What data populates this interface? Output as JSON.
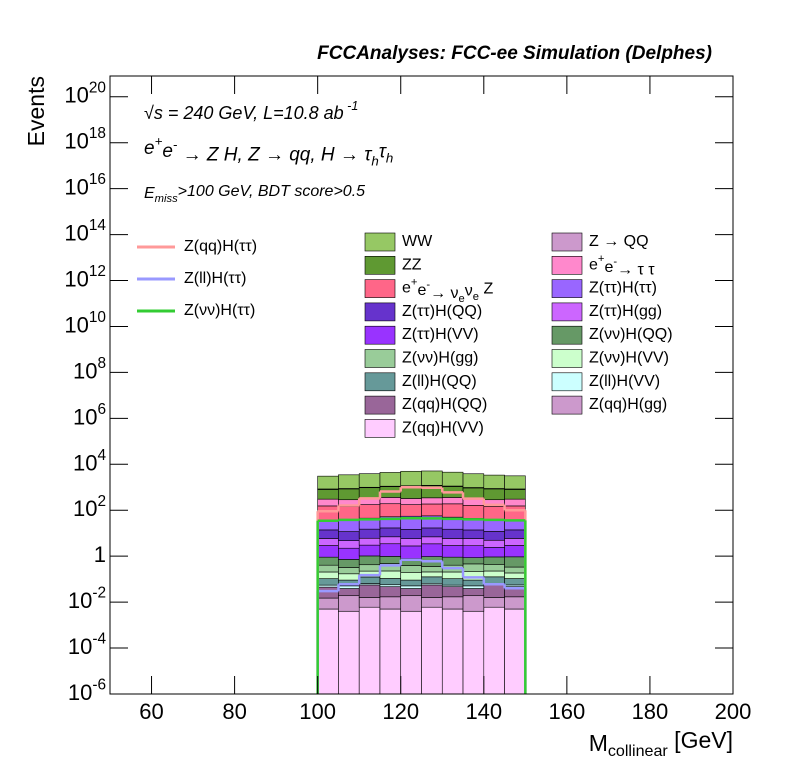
{
  "chart_data": {
    "type": "stacked_histogram",
    "title": "FCCAnalyses: FCC-ee Simulation (Delphes)",
    "annotations": [
      "√s = 240 GeV, L=10.8 ab^{ -1}",
      "e^{+}e^{-} → Z H, Z  → qq, H  → τ_{h}τ_{h}",
      "E_{miss}>100 GeV, BDT score>0.5"
    ],
    "x_label": "M_{collinear} [GeV]",
    "y_label": "Events",
    "log_y": true,
    "xlim": [
      50,
      200
    ],
    "xticks": [
      60,
      80,
      100,
      120,
      140,
      160,
      180,
      200
    ],
    "ylim": [
      1e-06,
      8e+20
    ],
    "yticks": [
      {
        "value": 1e-06,
        "label": "10^{-6}"
      },
      {
        "value": 0.0001,
        "label": "10^{-4}"
      },
      {
        "value": 0.01,
        "label": "10^{-2}"
      },
      1,
      {
        "value": 100,
        "label": "10^{2}"
      },
      {
        "value": 10000.0,
        "label": "10^{4}"
      },
      {
        "value": 1000000.0,
        "label": "10^{6}"
      },
      {
        "value": 100000000.0,
        "label": "10^{8}"
      },
      {
        "value": 10000000000.0,
        "label": "10^{10}"
      },
      {
        "value": 1000000000000.0,
        "label": "10^{12}"
      },
      {
        "value": 100000000000000.0,
        "label": "10^{14}"
      },
      {
        "value": 1e+16,
        "label": "10^{16}"
      },
      {
        "value": 1e+18,
        "label": "10^{18}"
      },
      {
        "value": 1e+20,
        "label": "10^{20}"
      }
    ],
    "bins": [
      100,
      105,
      110,
      115,
      120,
      125,
      130,
      135,
      140,
      145,
      150
    ],
    "series": [
      {
        "name": "WW",
        "color": "#96c864",
        "values": [
          2200,
          2600,
          2900,
          3300,
          3800,
          3900,
          3400,
          2900,
          2500,
          2300
        ]
      },
      {
        "name": "Z → QQ",
        "color": "#cc99cc",
        "values": [
          40,
          35,
          45,
          50,
          40,
          45,
          50,
          40,
          35,
          40
        ]
      },
      {
        "name": "ZZ",
        "color": "#5f9932",
        "values": [
          500,
          560,
          620,
          700,
          800,
          820,
          720,
          620,
          560,
          500
        ]
      },
      {
        "name": "e^{+}e^{-}→ τ τ",
        "color": "#ff88cc",
        "values": [
          150,
          140,
          160,
          170,
          150,
          160,
          170,
          150,
          140,
          150
        ]
      },
      {
        "name": "e^{+}e^{-}→ ν_{e}ν_{e} Z",
        "color": "#ff6688",
        "values": [
          120,
          110,
          130,
          140,
          120,
          130,
          140,
          120,
          110,
          120
        ]
      },
      {
        "name": "Z(ττ)H(ττ)",
        "color": "#9966ff",
        "values": [
          20,
          25,
          30,
          35,
          40,
          40,
          35,
          30,
          25,
          20
        ]
      },
      {
        "name": "Z(ττ)H(QQ)",
        "color": "#6633cc",
        "values": [
          8,
          7,
          9,
          10,
          9,
          10,
          9,
          8,
          7,
          8
        ]
      },
      {
        "name": "Z(ττ)H(gg)",
        "color": "#cc66ff",
        "values": [
          3,
          2.5,
          3,
          3.5,
          3,
          3.5,
          3,
          3,
          2.5,
          3
        ]
      },
      {
        "name": "Z(ττ)H(VV)",
        "color": "#9933ff",
        "values": [
          2,
          1.5,
          2,
          2.5,
          2,
          2.5,
          2,
          2,
          1.5,
          2
        ]
      },
      {
        "name": "Z(νν)H(QQ)",
        "color": "#669966",
        "values": [
          0.5,
          0.4,
          0.6,
          0.5,
          0.4,
          0.6,
          0.5,
          0.4,
          0.5,
          0.6
        ]
      },
      {
        "name": "Z(νν)H(gg)",
        "color": "#99cc99",
        "values": [
          0.2,
          0.15,
          0.2,
          0.25,
          0.2,
          0.15,
          0.2,
          0.25,
          0.2,
          0.15
        ]
      },
      {
        "name": "Z(νν)H(VV)",
        "color": "#ccffcc",
        "values": [
          0.1,
          0.08,
          0.1,
          0.12,
          0.1,
          0.08,
          0.1,
          0.12,
          0.1,
          0.08
        ]
      },
      {
        "name": "Z(ll)H(QQ)",
        "color": "#669999",
        "values": [
          0.05,
          0.04,
          0.06,
          0.05,
          0.04,
          0.06,
          0.05,
          0.04,
          0.06,
          0.05
        ]
      },
      {
        "name": "Z(ll)H(VV)",
        "color": "#ccffff",
        "values": [
          0.01,
          0.012,
          0.008,
          0.01,
          0.012,
          0.01,
          0.008,
          0.012,
          0.01,
          0.009
        ]
      },
      {
        "name": "Z(qq)H(QQ)",
        "color": "#996699",
        "values": [
          0.03,
          0.02,
          0.04,
          0.03,
          0.02,
          0.04,
          0.03,
          0.02,
          0.04,
          0.03
        ]
      },
      {
        "name": "Z(qq)H(gg)",
        "color": "#cc99cc",
        "values": [
          0.01,
          0.015,
          0.01,
          0.012,
          0.015,
          0.01,
          0.012,
          0.015,
          0.01,
          0.012
        ]
      },
      {
        "name": "Z(qq)H(VV)",
        "color": "#ffccff",
        "values": [
          0.005,
          0.004,
          0.006,
          0.005,
          0.004,
          0.006,
          0.005,
          0.004,
          0.006,
          0.005
        ]
      }
    ],
    "lines": [
      {
        "name": "Z(qq)H(ττ)",
        "color": "#ff9999",
        "values": [
          90,
          160,
          330,
          650,
          1000,
          950,
          600,
          320,
          170,
          100
        ]
      },
      {
        "name": "Z(ll)H(ττ)",
        "color": "#9999ff",
        "values": [
          0.03,
          0.06,
          0.15,
          0.4,
          0.7,
          0.6,
          0.3,
          0.12,
          0.06,
          0.04
        ]
      },
      {
        "name": "Z(νν)H(ττ)",
        "color": "#33cc33",
        "values": [
          35,
          38,
          40,
          42,
          45,
          44,
          42,
          40,
          38,
          36
        ]
      }
    ]
  }
}
